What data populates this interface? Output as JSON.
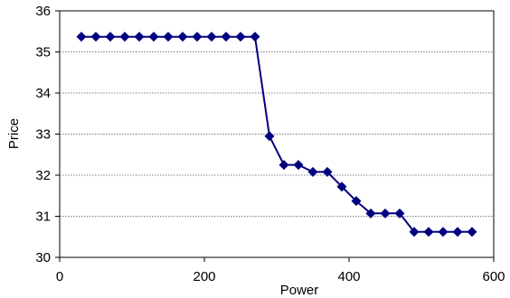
{
  "chart_data": {
    "type": "line",
    "xlabel": "Power",
    "ylabel": "Price",
    "xlim": [
      0,
      600
    ],
    "ylim": [
      30,
      36
    ],
    "x_ticks": [
      0,
      200,
      400,
      600
    ],
    "y_ticks": [
      30,
      31,
      32,
      33,
      34,
      35,
      36
    ],
    "grid": "horizontal dashed",
    "legend": "none",
    "series": [
      {
        "color": "#000080",
        "marker": "diamond",
        "points": [
          [
            30,
            35.37
          ],
          [
            50,
            35.37
          ],
          [
            70,
            35.37
          ],
          [
            90,
            35.37
          ],
          [
            110,
            35.37
          ],
          [
            130,
            35.37
          ],
          [
            150,
            35.37
          ],
          [
            170,
            35.37
          ],
          [
            190,
            35.37
          ],
          [
            210,
            35.37
          ],
          [
            230,
            35.37
          ],
          [
            250,
            35.37
          ],
          [
            270,
            35.37
          ],
          [
            290,
            32.95
          ],
          [
            310,
            32.25
          ],
          [
            330,
            32.25
          ],
          [
            350,
            32.08
          ],
          [
            370,
            32.08
          ],
          [
            390,
            31.72
          ],
          [
            410,
            31.37
          ],
          [
            430,
            31.07
          ],
          [
            450,
            31.07
          ],
          [
            470,
            31.07
          ],
          [
            490,
            30.62
          ],
          [
            510,
            30.62
          ],
          [
            530,
            30.62
          ],
          [
            550,
            30.62
          ],
          [
            570,
            30.62
          ]
        ]
      }
    ]
  }
}
